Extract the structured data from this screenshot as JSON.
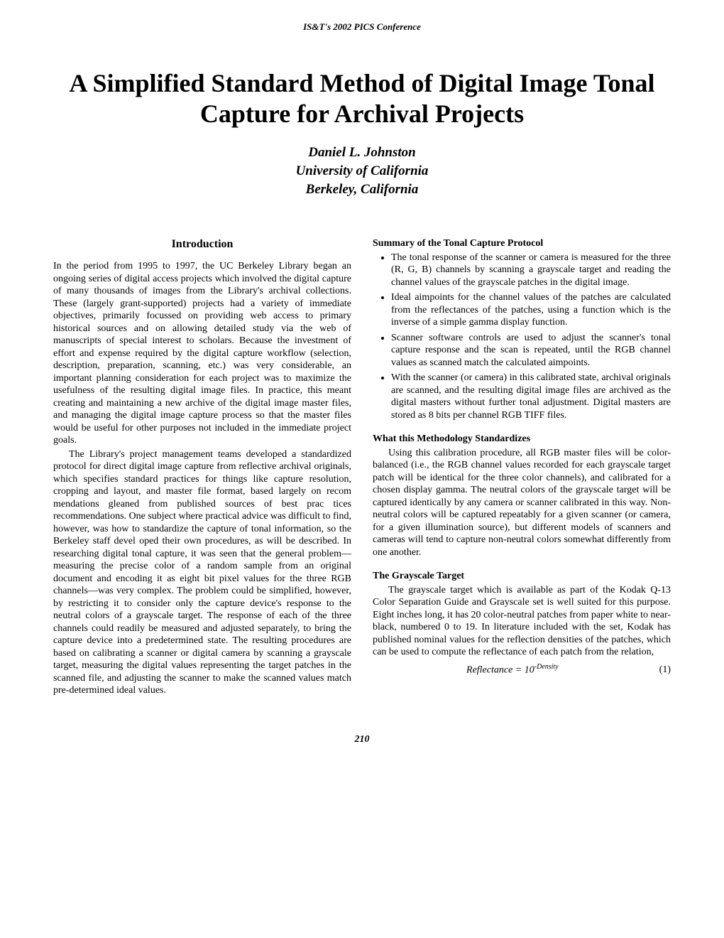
{
  "header": {
    "conference": "IS&T's 2002 PICS Conference"
  },
  "title": "A Simplified Standard Method of Digital Image Tonal Capture for Archival Projects",
  "authors": {
    "name": "Daniel L. Johnston",
    "affiliation": "University of California",
    "location": "Berkeley, California"
  },
  "left": {
    "section_heading": "Introduction",
    "p1": "In the period from 1995 to 1997, the UC Berkeley Library began an ongoing series of digital access projects which involved the digital capture of many thousands of images from the Library's archival collections. These (largely grant-supported) projects had a variety of immediate objectives, primarily focussed on providing web access to primary historical sources and on allowing detailed study via the web of manuscripts of special interest to scholars. Because the investment of effort and expense required by the digital capture workflow (selection, description, preparation, scanning, etc.) was very considerable, an important planning consideration for each project was to maximize the usefulness of the resulting digital image files. In practice, this meant creating and maintaining a new archive of the digital image master files, and managing the digital image capture process so that the master files would be useful for other purposes not included in the immediate project goals.",
    "p2": "The Library's project management teams developed a standardized protocol for direct digital image capture from reflective archival originals, which specifies standard practices for things like capture resolution, cropping and layout, and master file format, based largely on recom mendations gleaned from published sources of best prac tices recommendations. One subject where practical advice was difficult to find, however, was how to standardize the capture of tonal information, so the Berkeley staff devel oped their own procedures, as will be described. In researching digital tonal capture, it was seen that the general problem—measuring the precise color of a random sample from an original document and encoding it as eight bit pixel values for the three RGB channels—was very complex. The problem could be simplified, however, by restricting it to consider only the capture device's response to the neutral colors of a grayscale target. The response of each of the three channels could readily be measured and adjusted separately, to bring the capture device into a predetermined state. The resulting procedures are based on calibrating a scanner or digital camera by scanning a grayscale target, measuring the digital values representing the target patches in the scanned file, and adjusting the scanner to make the scanned values match pre-determined ideal values."
  },
  "right": {
    "sub1": "Summary of the Tonal Capture Protocol",
    "bullets": [
      "The tonal response of the scanner or camera is measured for the three (R, G, B) channels by scanning a grayscale target and reading the channel values of the grayscale patches in the digital image.",
      "Ideal aimpoints for the channel values of the patches are calculated from the reflectances of the patches, using a function which is the inverse of a simple gamma display function.",
      "Scanner software controls are used to adjust the scanner's tonal capture response and the scan is repeated, until the RGB channel values as scanned match the calculated aimpoints.",
      "With the scanner (or camera) in this calibrated state, archival originals are scanned, and the resulting digital image files are archived as the digital masters without further tonal adjustment. Digital masters are stored as 8 bits per channel RGB TIFF files."
    ],
    "sub2": "What this Methodology Standardizes",
    "p_method": "Using this calibration procedure, all RGB master files will be color-balanced (i.e., the RGB channel values recorded for each grayscale target patch will be identical for the three color channels), and calibrated for a chosen display gamma. The neutral colors of the grayscale target will be captured identically by any camera or scanner calibrated in this way. Non-neutral colors will be captured repeatably for a given scanner (or camera, for a given illumination source), but different models of scanners and cameras will tend to capture non-neutral colors somewhat differently from one another.",
    "sub3": "The Grayscale Target",
    "p_target": "The grayscale target which is available as part of the Kodak Q-13 Color Separation Guide and Grayscale set is well suited for this purpose. Eight inches long, it has 20 color-neutral patches from paper white to near-black, numbered 0 to 19. In literature included with the set, Kodak has published nominal values for the reflection densities of the patches, which can be used to compute the reflectance of each patch from the relation,",
    "equation_lhs": "Reflectance = 10",
    "equation_sup": "-Density",
    "equation_num": "(1)"
  },
  "page_number": "210"
}
